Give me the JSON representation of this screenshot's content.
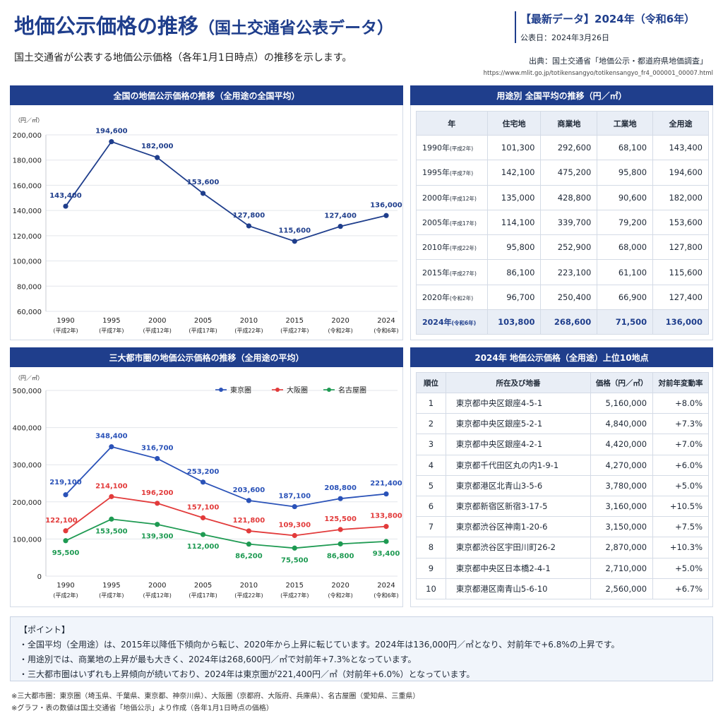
{
  "header": {
    "title": "地価公示価格の推移",
    "subtitle": "（国土交通省公表データ）",
    "intro": "国土交通省が公表する地価公示価格（各年1月1日時点）の推移を示します。",
    "latest_label": "【最新データ】2024年（令和6年）",
    "published": "公表日：2024年3月26日",
    "source": "出典：国土交通省「地価公示・都道府県地価調査」",
    "source_url": "https://www.mlit.go.jp/totikensangyo/totikensangyo_fr4_000001_00007.html"
  },
  "colors": {
    "navy": "#1f3e8c",
    "tokyo": "#2a52b8",
    "osaka": "#e23b3b",
    "nagoya": "#1e9a52"
  },
  "chart_data": [
    {
      "type": "line",
      "title": "全国の地価公示価格の推移（全用途の全国平均）",
      "unit_label": "（円／㎡）",
      "x": [
        "1990",
        "1995",
        "2000",
        "2005",
        "2010",
        "2015",
        "2020",
        "2024"
      ],
      "x_sub": [
        "(平成2年)",
        "(平成7年)",
        "(平成12年)",
        "(平成17年)",
        "(平成22年)",
        "(平成27年)",
        "(令和2年)",
        "(令和6年)"
      ],
      "series": [
        {
          "values": [
            143400,
            194600,
            182000,
            153600,
            127800,
            115600,
            127400,
            136000
          ],
          "point_labels": [
            "143,400",
            "194,600",
            "182,000",
            "153,600",
            "127,800",
            "115,600",
            "127,400",
            "136,000"
          ]
        }
      ],
      "ylim": [
        60000,
        200000
      ],
      "yticks": [
        60000,
        80000,
        100000,
        120000,
        140000,
        160000,
        180000,
        200000
      ],
      "ytick_labels": [
        "60,000",
        "80,000",
        "100,000",
        "120,000",
        "140,000",
        "160,000",
        "180,000",
        "200,000"
      ],
      "grid": true
    },
    {
      "type": "line",
      "title": "三大都市圏の地価公示価格の推移（全用途の平均）",
      "unit_label": "（円／㎡）",
      "x": [
        "1990",
        "1995",
        "2000",
        "2005",
        "2010",
        "2015",
        "2020",
        "2024"
      ],
      "x_sub": [
        "(平成2年)",
        "(平成7年)",
        "(平成12年)",
        "(平成17年)",
        "(平成22年)",
        "(平成27年)",
        "(令和2年)",
        "(令和6年)"
      ],
      "series": [
        {
          "name": "東京圏",
          "values": [
            219100,
            348400,
            316700,
            253200,
            203600,
            187100,
            208800,
            221400
          ],
          "point_labels": [
            "219,100",
            "348,400",
            "316,700",
            "253,200",
            "203,600",
            "187,100",
            "208,800",
            "221,400"
          ]
        },
        {
          "name": "大阪圏",
          "values": [
            122100,
            214100,
            196200,
            157100,
            121800,
            109300,
            125500,
            133800
          ],
          "point_labels": [
            "122,100",
            "214,100",
            "196,200",
            "157,100",
            "121,800",
            "109,300",
            "125,500",
            "133,800"
          ]
        },
        {
          "name": "名古屋圏",
          "values": [
            95500,
            153500,
            139300,
            112000,
            86200,
            75500,
            86800,
            93400
          ],
          "point_labels": [
            "95,500",
            "153,500",
            "139,300",
            "112,000",
            "86,200",
            "75,500",
            "86,800",
            "93,400"
          ]
        }
      ],
      "ylim": [
        0,
        500000
      ],
      "yticks": [
        0,
        100000,
        200000,
        300000,
        400000,
        500000
      ],
      "ytick_labels": [
        "0",
        "100,000",
        "200,000",
        "300,000",
        "400,000",
        "500,000"
      ],
      "legend": "top-right",
      "grid": true
    }
  ],
  "usage_table": {
    "title": "用途別 全国平均の推移（円／㎡）",
    "headers": [
      "年",
      "住宅地",
      "商業地",
      "工業地",
      "全用途"
    ],
    "rows": [
      {
        "year": "1990年",
        "era": "(平成2年)",
        "vals": [
          "101,300",
          "292,600",
          "68,100",
          "143,400"
        ]
      },
      {
        "year": "1995年",
        "era": "(平成7年)",
        "vals": [
          "142,100",
          "475,200",
          "95,800",
          "194,600"
        ]
      },
      {
        "year": "2000年",
        "era": "(平成12年)",
        "vals": [
          "135,000",
          "428,800",
          "90,600",
          "182,000"
        ]
      },
      {
        "year": "2005年",
        "era": "(平成17年)",
        "vals": [
          "114,100",
          "339,700",
          "79,200",
          "153,600"
        ]
      },
      {
        "year": "2010年",
        "era": "(平成22年)",
        "vals": [
          "95,800",
          "252,900",
          "68,000",
          "127,800"
        ]
      },
      {
        "year": "2015年",
        "era": "(平成27年)",
        "vals": [
          "86,100",
          "223,100",
          "61,100",
          "115,600"
        ]
      },
      {
        "year": "2020年",
        "era": "(令和2年)",
        "vals": [
          "96,700",
          "250,400",
          "66,900",
          "127,400"
        ]
      },
      {
        "year": "2024年",
        "era": "(令和6年)",
        "vals": [
          "103,800",
          "268,600",
          "71,500",
          "136,000"
        ]
      }
    ]
  },
  "top10_table": {
    "title": "2024年 地価公示価格（全用途）上位10地点",
    "headers": [
      "順位",
      "所在及び地番",
      "価格（円／㎡）",
      "対前年変動率"
    ],
    "rows": [
      [
        "1",
        "東京都中央区銀座4-5-1",
        "5,160,000",
        "+8.0%"
      ],
      [
        "2",
        "東京都中央区銀座5-2-1",
        "4,840,000",
        "+7.3%"
      ],
      [
        "3",
        "東京都中央区銀座4-2-1",
        "4,420,000",
        "+7.0%"
      ],
      [
        "4",
        "東京都千代田区丸の内1-9-1",
        "4,270,000",
        "+6.0%"
      ],
      [
        "5",
        "東京都港区北青山3-5-6",
        "3,780,000",
        "+5.0%"
      ],
      [
        "6",
        "東京都新宿区新宿3-17-5",
        "3,160,000",
        "+10.5%"
      ],
      [
        "7",
        "東京都渋谷区神南1-20-6",
        "3,150,000",
        "+7.5%"
      ],
      [
        "8",
        "東京都渋谷区宇田川町26-2",
        "2,870,000",
        "+10.3%"
      ],
      [
        "9",
        "東京都中央区日本橋2-4-1",
        "2,710,000",
        "+5.0%"
      ],
      [
        "10",
        "東京都港区南青山5-6-10",
        "2,560,000",
        "+6.7%"
      ]
    ]
  },
  "points": {
    "title": "【ポイント】",
    "items": [
      "・全国平均（全用途）は、2015年以降低下傾向から転じ、2020年から上昇に転じています。2024年は136,000円／㎡となり、対前年で+6.8%の上昇です。",
      "・用途別では、商業地の上昇が最も大きく、2024年は268,600円／㎡で対前年+7.3%となっています。",
      "・三大都市圏はいずれも上昇傾向が続いており、2024年は東京圏が221,400円／㎡（対前年+6.0%）となっています。"
    ]
  },
  "footnotes": [
    "※三大都市圏：東京圏（埼玉県、千葉県、東京都、神奈川県）、大阪圏（京都府、大阪府、兵庫県）、名古屋圏（愛知県、三重県）",
    "※グラフ・表の数値は国土交通省「地価公示」より作成（各年1月1日時点の価格）"
  ]
}
